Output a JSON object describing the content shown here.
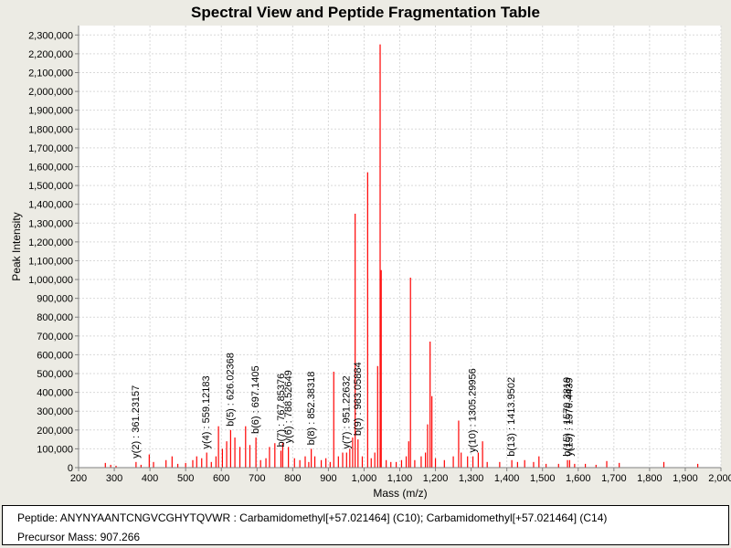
{
  "chart_data": {
    "type": "bar",
    "title": "Spectral View and Peptide Fragmentation Table",
    "xlabel": "Mass (m/z)",
    "ylabel": "Peak Intensity",
    "xlim": [
      200,
      2000
    ],
    "ylim": [
      0,
      2350000
    ],
    "x_ticks": [
      200,
      300,
      400,
      500,
      600,
      700,
      800,
      900,
      1000,
      1100,
      1200,
      1300,
      1400,
      1500,
      1600,
      1700,
      1800,
      1900,
      2000
    ],
    "x_tick_labels": [
      "200",
      "300",
      "400",
      "500",
      "600",
      "700",
      "800",
      "900",
      "1,000",
      "1,100",
      "1,200",
      "1,300",
      "1,400",
      "1,500",
      "1,600",
      "1,700",
      "1,800",
      "1,900",
      "2,000"
    ],
    "y_ticks": [
      0,
      100000,
      200000,
      300000,
      400000,
      500000,
      600000,
      700000,
      800000,
      900000,
      1000000,
      1100000,
      1200000,
      1300000,
      1400000,
      1500000,
      1600000,
      1700000,
      1800000,
      1900000,
      2000000,
      2100000,
      2200000,
      2300000
    ],
    "y_tick_labels": [
      "0",
      "100,000",
      "200,000",
      "300,000",
      "400,000",
      "500,000",
      "600,000",
      "700,000",
      "800,000",
      "900,000",
      "1,000,000",
      "1,100,000",
      "1,200,000",
      "1,300,000",
      "1,400,000",
      "1,500,000",
      "1,600,000",
      "1,700,000",
      "1,800,000",
      "1,900,000",
      "2,000,000",
      "2,100,000",
      "2,200,000",
      "2,300,000"
    ],
    "grid": true,
    "peak_color": "#ff0000",
    "peaks": [
      {
        "mz": 275,
        "intensity": 25000
      },
      {
        "mz": 290,
        "intensity": 15000
      },
      {
        "mz": 305,
        "intensity": 10000
      },
      {
        "mz": 361,
        "intensity": 30000
      },
      {
        "mz": 375,
        "intensity": 15000
      },
      {
        "mz": 398,
        "intensity": 70000
      },
      {
        "mz": 410,
        "intensity": 30000
      },
      {
        "mz": 445,
        "intensity": 40000
      },
      {
        "mz": 462,
        "intensity": 60000
      },
      {
        "mz": 478,
        "intensity": 20000
      },
      {
        "mz": 500,
        "intensity": 25000
      },
      {
        "mz": 520,
        "intensity": 40000
      },
      {
        "mz": 531,
        "intensity": 60000
      },
      {
        "mz": 545,
        "intensity": 50000
      },
      {
        "mz": 559,
        "intensity": 80000
      },
      {
        "mz": 572,
        "intensity": 30000
      },
      {
        "mz": 585,
        "intensity": 60000
      },
      {
        "mz": 592,
        "intensity": 220000
      },
      {
        "mz": 603,
        "intensity": 100000
      },
      {
        "mz": 615,
        "intensity": 140000
      },
      {
        "mz": 626,
        "intensity": 200000
      },
      {
        "mz": 638,
        "intensity": 160000
      },
      {
        "mz": 652,
        "intensity": 110000
      },
      {
        "mz": 668,
        "intensity": 220000
      },
      {
        "mz": 680,
        "intensity": 120000
      },
      {
        "mz": 697,
        "intensity": 160000
      },
      {
        "mz": 710,
        "intensity": 40000
      },
      {
        "mz": 725,
        "intensity": 50000
      },
      {
        "mz": 735,
        "intensity": 110000
      },
      {
        "mz": 750,
        "intensity": 130000
      },
      {
        "mz": 767,
        "intensity": 90000
      },
      {
        "mz": 772,
        "intensity": 130000
      },
      {
        "mz": 788,
        "intensity": 110000
      },
      {
        "mz": 805,
        "intensity": 50000
      },
      {
        "mz": 820,
        "intensity": 40000
      },
      {
        "mz": 835,
        "intensity": 60000
      },
      {
        "mz": 845,
        "intensity": 30000
      },
      {
        "mz": 852,
        "intensity": 100000
      },
      {
        "mz": 862,
        "intensity": 60000
      },
      {
        "mz": 880,
        "intensity": 40000
      },
      {
        "mz": 893,
        "intensity": 50000
      },
      {
        "mz": 905,
        "intensity": 30000
      },
      {
        "mz": 915,
        "intensity": 510000
      },
      {
        "mz": 928,
        "intensity": 60000
      },
      {
        "mz": 940,
        "intensity": 80000
      },
      {
        "mz": 951,
        "intensity": 80000
      },
      {
        "mz": 960,
        "intensity": 100000
      },
      {
        "mz": 968,
        "intensity": 160000
      },
      {
        "mz": 975,
        "intensity": 1350000
      },
      {
        "mz": 983,
        "intensity": 150000
      },
      {
        "mz": 995,
        "intensity": 60000
      },
      {
        "mz": 1010,
        "intensity": 1570000
      },
      {
        "mz": 1020,
        "intensity": 50000
      },
      {
        "mz": 1030,
        "intensity": 80000
      },
      {
        "mz": 1038,
        "intensity": 540000
      },
      {
        "mz": 1045,
        "intensity": 2250000
      },
      {
        "mz": 1048,
        "intensity": 1050000
      },
      {
        "mz": 1062,
        "intensity": 40000
      },
      {
        "mz": 1075,
        "intensity": 30000
      },
      {
        "mz": 1090,
        "intensity": 30000
      },
      {
        "mz": 1105,
        "intensity": 40000
      },
      {
        "mz": 1118,
        "intensity": 60000
      },
      {
        "mz": 1125,
        "intensity": 140000
      },
      {
        "mz": 1130,
        "intensity": 1010000
      },
      {
        "mz": 1142,
        "intensity": 40000
      },
      {
        "mz": 1160,
        "intensity": 60000
      },
      {
        "mz": 1172,
        "intensity": 80000
      },
      {
        "mz": 1178,
        "intensity": 230000
      },
      {
        "mz": 1185,
        "intensity": 670000
      },
      {
        "mz": 1190,
        "intensity": 380000
      },
      {
        "mz": 1200,
        "intensity": 50000
      },
      {
        "mz": 1225,
        "intensity": 40000
      },
      {
        "mz": 1250,
        "intensity": 60000
      },
      {
        "mz": 1265,
        "intensity": 250000
      },
      {
        "mz": 1272,
        "intensity": 80000
      },
      {
        "mz": 1290,
        "intensity": 60000
      },
      {
        "mz": 1305,
        "intensity": 60000
      },
      {
        "mz": 1320,
        "intensity": 80000
      },
      {
        "mz": 1332,
        "intensity": 140000
      },
      {
        "mz": 1345,
        "intensity": 30000
      },
      {
        "mz": 1380,
        "intensity": 30000
      },
      {
        "mz": 1414,
        "intensity": 40000
      },
      {
        "mz": 1430,
        "intensity": 30000
      },
      {
        "mz": 1450,
        "intensity": 40000
      },
      {
        "mz": 1475,
        "intensity": 30000
      },
      {
        "mz": 1490,
        "intensity": 60000
      },
      {
        "mz": 1510,
        "intensity": 20000
      },
      {
        "mz": 1545,
        "intensity": 20000
      },
      {
        "mz": 1570,
        "intensity": 40000
      },
      {
        "mz": 1576,
        "intensity": 40000
      },
      {
        "mz": 1590,
        "intensity": 20000
      },
      {
        "mz": 1620,
        "intensity": 20000
      },
      {
        "mz": 1650,
        "intensity": 15000
      },
      {
        "mz": 1680,
        "intensity": 35000
      },
      {
        "mz": 1715,
        "intensity": 25000
      },
      {
        "mz": 1840,
        "intensity": 30000
      },
      {
        "mz": 1935,
        "intensity": 20000
      }
    ],
    "annotations": [
      {
        "label": "y(2) : 361.23157",
        "mz": 361.23,
        "intensity": 30000
      },
      {
        "label": "y(4) : 559.12183",
        "mz": 559.12,
        "intensity": 80000
      },
      {
        "label": "b(5) : 626.02368",
        "mz": 626.02,
        "intensity": 200000
      },
      {
        "label": "b(6) : 697.1405",
        "mz": 697.14,
        "intensity": 160000
      },
      {
        "label": "b(7) : 767.85376",
        "mz": 767.85,
        "intensity": 90000
      },
      {
        "label": "y(6) : 788.52649",
        "mz": 788.53,
        "intensity": 110000
      },
      {
        "label": "b(8) : 852.38318",
        "mz": 852.38,
        "intensity": 100000
      },
      {
        "label": "y(7) : 951.22632",
        "mz": 951.23,
        "intensity": 80000
      },
      {
        "label": "b(9) : 983.05884",
        "mz": 983.06,
        "intensity": 150000
      },
      {
        "label": "y(10) : 1305.29956",
        "mz": 1305.3,
        "intensity": 60000
      },
      {
        "label": "b(13) : 1413.9502",
        "mz": 1413.95,
        "intensity": 40000
      },
      {
        "label": "b(15) : 1570.3819",
        "mz": 1570.38,
        "intensity": 40000
      },
      {
        "label": "y(15) : 1576.4439",
        "mz": 1576.44,
        "intensity": 40000
      }
    ]
  },
  "info": {
    "peptide": "Peptide: ANYNYAANTCNGVCGHYTQVWR : Carbamidomethyl[+57.021464] (C10); Carbamidomethyl[+57.021464] (C14)",
    "precursor": "Precursor Mass: 907.266"
  }
}
